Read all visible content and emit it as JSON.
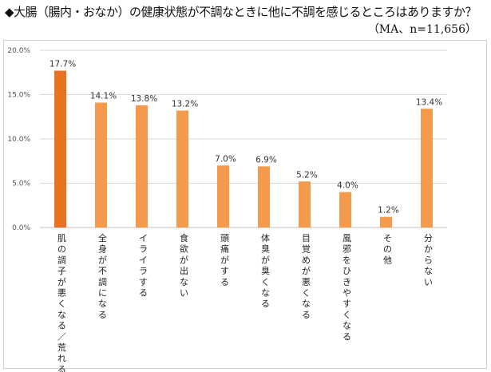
{
  "header": {
    "title": "◆大腸（腸内・おなか）の健康状態が不調なときに他に不調を感じるところはありますか？",
    "subtitle": "（MA、n=11,656）"
  },
  "colors": {
    "highlight_bar": "#e8721f",
    "bar": "#f39a4d",
    "grid": "#d9d9d9",
    "axis": "#bfbfbf"
  },
  "chart_data": {
    "type": "bar",
    "title": "◆大腸（腸内・おなか）の健康状態が不調なときに他に不調を感じるところはありますか？",
    "subtitle": "（MA、n=11,656）",
    "categories": [
      "肌の調子が悪くなる／荒れる",
      "全身が不調になる",
      "イライラする",
      "食欲が出ない",
      "頭痛がする",
      "体臭が臭くなる",
      "目覚めが悪くなる",
      "風邪をひきやすくなる",
      "その他",
      "分からない"
    ],
    "values": [
      17.7,
      14.1,
      13.8,
      13.2,
      7.0,
      6.9,
      5.2,
      4.0,
      1.2,
      13.4
    ],
    "value_labels": [
      "17.7%",
      "14.1%",
      "13.8%",
      "13.2%",
      "7.0%",
      "6.9%",
      "5.2%",
      "4.0%",
      "1.2%",
      "13.4%"
    ],
    "ylim": [
      0,
      20
    ],
    "yticks": [
      0,
      5,
      10,
      15,
      20
    ],
    "ytick_labels": [
      "0.0%",
      "5.0%",
      "10.0%",
      "15.0%",
      "20.0%"
    ],
    "grid": true,
    "xlabel": "",
    "ylabel": ""
  }
}
